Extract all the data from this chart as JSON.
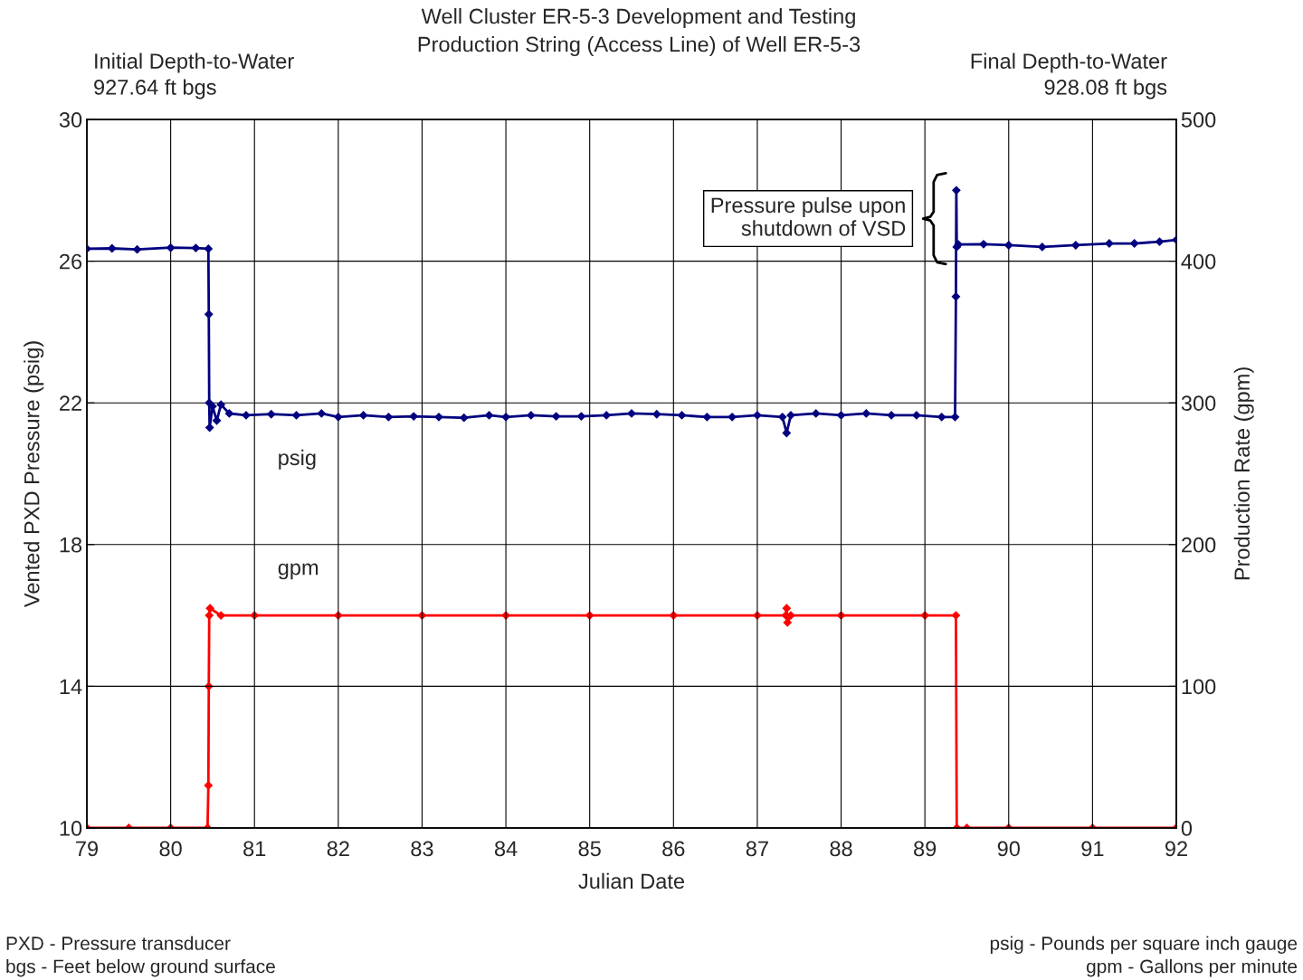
{
  "chart_data": {
    "type": "line",
    "title": "Well Cluster ER-5-3 Development and Testing",
    "subtitle": "Production String (Access Line) of Well ER-5-3",
    "xlabel": "Julian Date",
    "ylabel": "Vented PXD Pressure (psig)",
    "y2label": "Production Rate (gpm)",
    "xlim": [
      79,
      92
    ],
    "xticks": [
      79,
      80,
      81,
      82,
      83,
      84,
      85,
      86,
      87,
      88,
      89,
      90,
      91,
      92
    ],
    "ylim": [
      10,
      30
    ],
    "yticks": [
      10,
      14,
      18,
      22,
      26,
      30
    ],
    "y2lim": [
      0,
      500
    ],
    "y2ticks": [
      0,
      100,
      200,
      300,
      400,
      500
    ],
    "grid": true,
    "legend": false,
    "marker": "diamond",
    "line_style": "solid",
    "series": [
      {
        "name": "psig",
        "color": "#000080",
        "x": [
          79.0,
          79.3,
          79.6,
          80.0,
          80.3,
          80.45,
          80.455,
          80.46,
          80.465,
          80.5,
          80.55,
          80.6,
          80.7,
          80.9,
          81.2,
          81.5,
          81.8,
          82.0,
          82.3,
          82.6,
          82.9,
          83.2,
          83.5,
          83.8,
          84.0,
          84.3,
          84.6,
          84.9,
          85.2,
          85.5,
          85.8,
          86.1,
          86.4,
          86.7,
          87.0,
          87.3,
          87.35,
          87.4,
          87.7,
          88.0,
          88.3,
          88.6,
          88.9,
          89.2,
          89.36,
          89.37,
          89.375,
          89.38,
          89.4,
          89.7,
          90.0,
          90.4,
          90.8,
          91.2,
          91.5,
          91.8,
          92.0
        ],
        "values": [
          26.35,
          26.36,
          26.33,
          26.38,
          26.37,
          26.35,
          24.5,
          22.0,
          21.3,
          21.9,
          21.5,
          21.95,
          21.7,
          21.65,
          21.68,
          21.65,
          21.7,
          21.6,
          21.65,
          21.6,
          21.62,
          21.6,
          21.58,
          21.65,
          21.6,
          21.65,
          21.62,
          21.62,
          21.65,
          21.7,
          21.68,
          21.65,
          21.6,
          21.6,
          21.65,
          21.6,
          21.15,
          21.65,
          21.7,
          21.65,
          21.7,
          21.65,
          21.65,
          21.6,
          21.6,
          25.0,
          28.0,
          26.4,
          26.47,
          26.48,
          26.45,
          26.4,
          26.45,
          26.5,
          26.5,
          26.55,
          26.6
        ]
      },
      {
        "name": "gpm",
        "color": "#ff0000",
        "axis": "y2",
        "x": [
          79.0,
          79.5,
          80.0,
          80.44,
          80.45,
          80.455,
          80.46,
          80.47,
          80.6,
          81.0,
          82.0,
          83.0,
          84.0,
          85.0,
          86.0,
          87.0,
          87.34,
          87.35,
          87.36,
          87.4,
          88.0,
          89.0,
          89.37,
          89.38,
          89.5,
          90.0,
          91.0,
          92.0
        ],
        "values": [
          0,
          0,
          0,
          0,
          30,
          100,
          150,
          155,
          150,
          150,
          150,
          150,
          150,
          150,
          150,
          150,
          150,
          155,
          145,
          150,
          150,
          150,
          150,
          0,
          0,
          0,
          0,
          0
        ]
      }
    ],
    "annotations": [
      "Initial Depth-to-Water\n927.64 ft bgs",
      "Final Depth-to-Water\n928.08 ft bgs",
      {
        "text": "Pressure pulse upon\nshutdown of VSD",
        "x": 89.375,
        "y": 27.2
      },
      "PXD - Pressure transducer\nbgs - Feet below ground surface",
      "psig - Pounds per square inch gauge\ngpm - Gallons per minute"
    ]
  }
}
